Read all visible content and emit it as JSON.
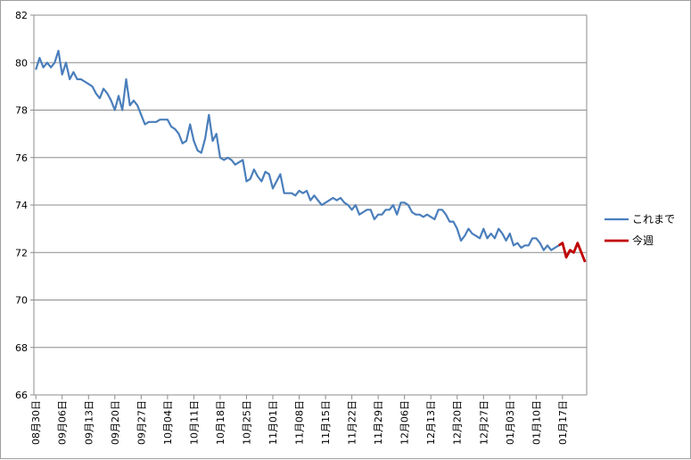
{
  "chart_data": {
    "type": "line",
    "ylim": [
      66,
      82
    ],
    "yticks": [
      66,
      68,
      70,
      72,
      74,
      76,
      78,
      80,
      82
    ],
    "grid": "horizontal",
    "legend_position": "right",
    "xtick_labels": [
      "08月30日",
      "09月06日",
      "09月13日",
      "09月20日",
      "09月27日",
      "10月04日",
      "10月11日",
      "10月18日",
      "10月25日",
      "11月01日",
      "11月08日",
      "11月15日",
      "11月22日",
      "11月29日",
      "12月06日",
      "12月13日",
      "12月20日",
      "12月27日",
      "01月03日",
      "01月10日",
      "01月17日"
    ],
    "series": [
      {
        "name": "これまで",
        "color": "#4a7ebb",
        "start_index": 0,
        "values": [
          79.7,
          80.2,
          79.8,
          80.0,
          79.8,
          80.0,
          80.5,
          79.5,
          80.0,
          79.3,
          79.6,
          79.3,
          79.3,
          79.2,
          79.1,
          79.0,
          78.7,
          78.5,
          78.9,
          78.7,
          78.4,
          78.0,
          78.6,
          78.0,
          79.3,
          78.2,
          78.4,
          78.2,
          77.8,
          77.4,
          77.5,
          77.5,
          77.5,
          77.6,
          77.6,
          77.6,
          77.3,
          77.2,
          77.0,
          76.6,
          76.7,
          77.4,
          76.7,
          76.3,
          76.2,
          76.8,
          77.8,
          76.7,
          77.0,
          76.0,
          75.9,
          76.0,
          75.9,
          75.7,
          75.8,
          75.9,
          75.0,
          75.1,
          75.5,
          75.2,
          75.0,
          75.4,
          75.3,
          74.7,
          75.0,
          75.3,
          74.5,
          74.5,
          74.5,
          74.4,
          74.6,
          74.5,
          74.6,
          74.2,
          74.4,
          74.2,
          74.0,
          74.1,
          74.2,
          74.3,
          74.2,
          74.3,
          74.1,
          74.0,
          73.8,
          74.0,
          73.6,
          73.7,
          73.8,
          73.8,
          73.4,
          73.6,
          73.6,
          73.8,
          73.8,
          74.0,
          73.6,
          74.1,
          74.1,
          74.0,
          73.7,
          73.6,
          73.6,
          73.5,
          73.6,
          73.5,
          73.4,
          73.8,
          73.8,
          73.6,
          73.3,
          73.3,
          73.0,
          72.5,
          72.7,
          73.0,
          72.8,
          72.7,
          72.6,
          73.0,
          72.6,
          72.8,
          72.6,
          73.0,
          72.8,
          72.5,
          72.8,
          72.3,
          72.4,
          72.2,
          72.3,
          72.3,
          72.6,
          72.6,
          72.4,
          72.1,
          72.3,
          72.1,
          72.2,
          72.3
        ]
      },
      {
        "name": "今週",
        "color": "#c00000",
        "start_index": 139,
        "values": [
          72.3,
          72.4,
          71.8,
          72.1,
          72.0,
          72.4,
          72.0,
          71.6
        ]
      }
    ]
  }
}
